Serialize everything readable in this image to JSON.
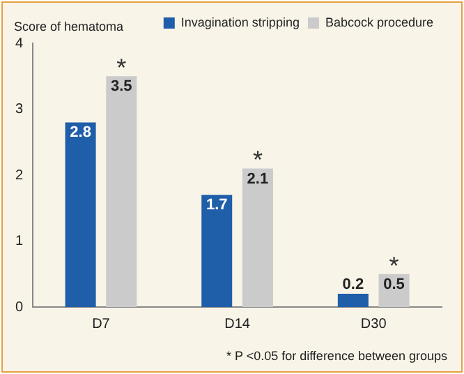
{
  "chart_data": {
    "type": "bar",
    "ylabel": "Score of hematoma",
    "categories": [
      "D7",
      "D14",
      "D30"
    ],
    "series": [
      {
        "name": "Invagination stripping",
        "color": "#1f5ea8",
        "values": [
          2.8,
          1.7,
          0.2
        ]
      },
      {
        "name": "Babcock procedure",
        "color": "#cbcbcb",
        "values": [
          3.5,
          2.1,
          0.5
        ]
      }
    ],
    "ylim": [
      0,
      4
    ],
    "yticks": [
      0,
      1,
      2,
      3,
      4
    ],
    "grid": false,
    "legend": "top right",
    "data_labels": true,
    "annotations": [
      {
        "text": "*",
        "x": "D7",
        "y": 3.5
      },
      {
        "text": "*",
        "x": "D14",
        "y": 2.1
      },
      {
        "text": "*",
        "x": "D30",
        "y": 0.5
      },
      "* P <0.05 for difference between groups"
    ]
  }
}
